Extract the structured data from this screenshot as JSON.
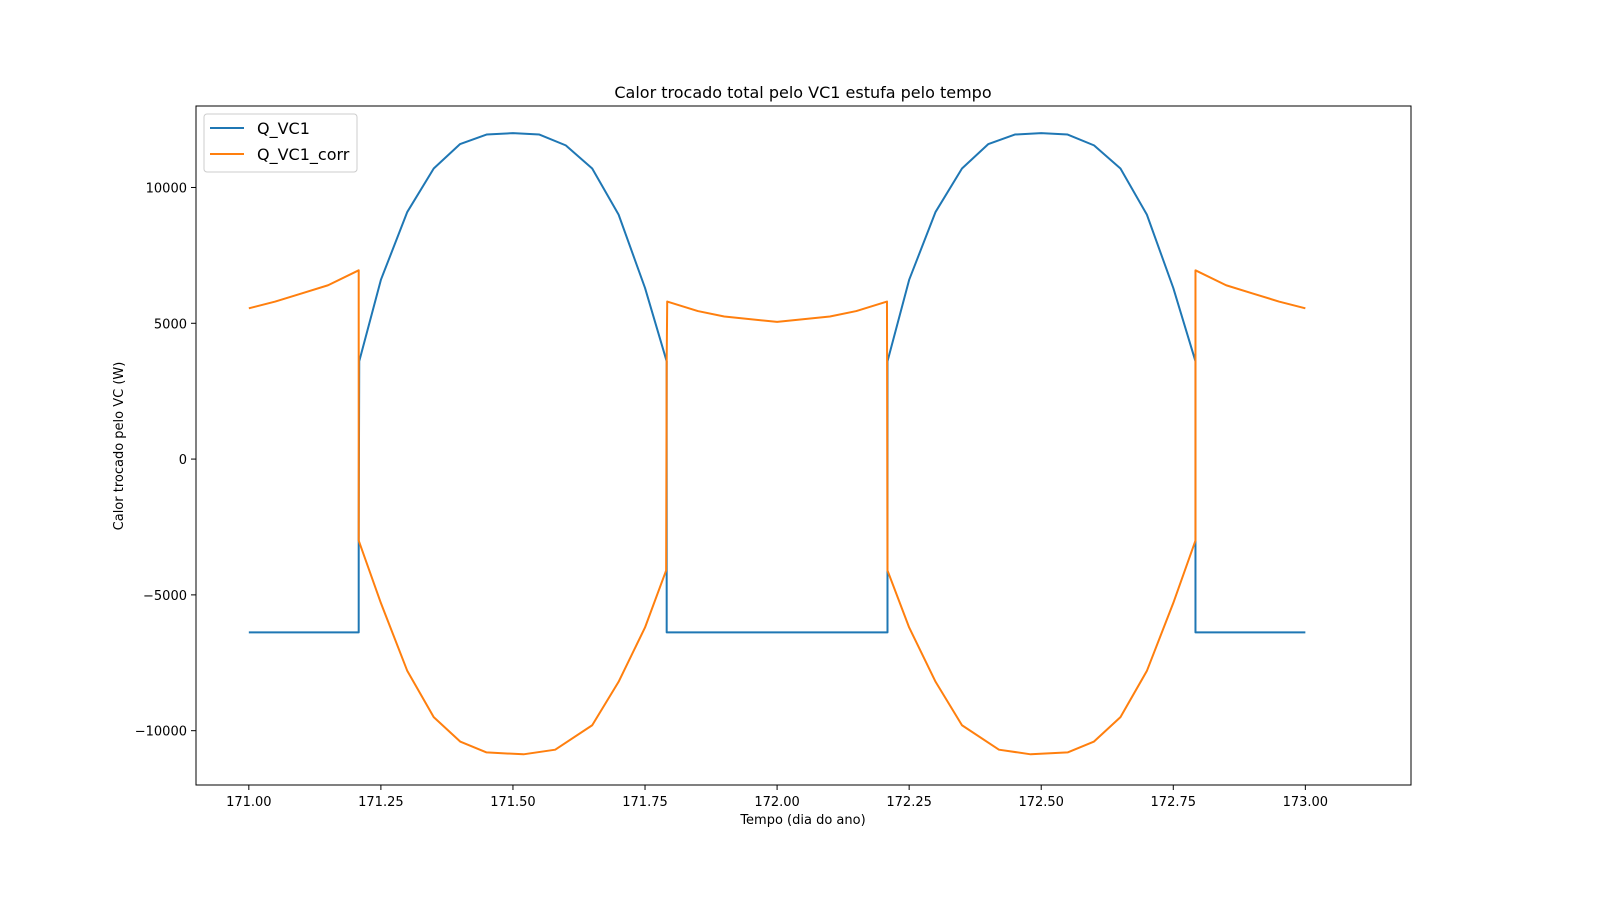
{
  "chart_data": {
    "type": "line",
    "title": "Calor trocado total pelo VC1 estufa pelo tempo",
    "xlabel": "Tempo (dia do ano)",
    "ylabel": "Calor trocado pelo VC (W)",
    "xlim": [
      170.9,
      173.2
    ],
    "ylim": [
      -12000,
      13000
    ],
    "xticks": [
      171.0,
      171.25,
      171.5,
      171.75,
      172.0,
      172.25,
      172.5,
      172.75,
      173.0
    ],
    "xtick_labels": [
      "171.00",
      "171.25",
      "171.50",
      "171.75",
      "172.00",
      "172.25",
      "172.50",
      "172.75",
      "173.00"
    ],
    "yticks": [
      -10000,
      -5000,
      0,
      5000,
      10000
    ],
    "ytick_labels": [
      "−10000",
      "−5000",
      "0",
      "5000",
      "10000"
    ],
    "grid": false,
    "legend_position": "upper-left",
    "series": [
      {
        "name": "Q_VC1",
        "color": "#1f77b4",
        "points": [
          [
            171.0,
            -6380
          ],
          [
            171.208,
            -6380
          ],
          [
            171.208,
            -3000
          ],
          [
            171.209,
            3600
          ],
          [
            171.25,
            6600
          ],
          [
            171.3,
            9100
          ],
          [
            171.35,
            10700
          ],
          [
            171.4,
            11600
          ],
          [
            171.45,
            11950
          ],
          [
            171.5,
            12000
          ],
          [
            171.55,
            11950
          ],
          [
            171.6,
            11550
          ],
          [
            171.65,
            10700
          ],
          [
            171.7,
            9000
          ],
          [
            171.75,
            6300
          ],
          [
            171.791,
            3600
          ],
          [
            171.791,
            -6380
          ],
          [
            172.209,
            -6380
          ],
          [
            172.209,
            3600
          ],
          [
            172.25,
            6600
          ],
          [
            172.3,
            9100
          ],
          [
            172.35,
            10700
          ],
          [
            172.4,
            11600
          ],
          [
            172.45,
            11950
          ],
          [
            172.5,
            12000
          ],
          [
            172.55,
            11950
          ],
          [
            172.6,
            11550
          ],
          [
            172.65,
            10700
          ],
          [
            172.7,
            9000
          ],
          [
            172.75,
            6300
          ],
          [
            172.792,
            3600
          ],
          [
            172.792,
            -6380
          ],
          [
            173.0,
            -6380
          ]
        ]
      },
      {
        "name": "Q_VC1_corr",
        "color": "#ff7f0e",
        "points": [
          [
            171.0,
            5550
          ],
          [
            171.05,
            5800
          ],
          [
            171.1,
            6100
          ],
          [
            171.15,
            6400
          ],
          [
            171.208,
            6950
          ],
          [
            171.208,
            -3000
          ],
          [
            171.25,
            -5300
          ],
          [
            171.3,
            -7800
          ],
          [
            171.35,
            -9500
          ],
          [
            171.4,
            -10400
          ],
          [
            171.45,
            -10800
          ],
          [
            171.52,
            -10870
          ],
          [
            171.58,
            -10700
          ],
          [
            171.65,
            -9800
          ],
          [
            171.7,
            -8200
          ],
          [
            171.75,
            -6200
          ],
          [
            171.79,
            -4100
          ],
          [
            171.791,
            3600
          ],
          [
            171.792,
            5800
          ],
          [
            171.85,
            5450
          ],
          [
            171.9,
            5250
          ],
          [
            172.0,
            5050
          ],
          [
            172.1,
            5250
          ],
          [
            172.15,
            5450
          ],
          [
            172.208,
            5800
          ],
          [
            172.209,
            -4100
          ],
          [
            172.25,
            -6200
          ],
          [
            172.3,
            -8200
          ],
          [
            172.35,
            -9800
          ],
          [
            172.42,
            -10700
          ],
          [
            172.48,
            -10870
          ],
          [
            172.55,
            -10800
          ],
          [
            172.6,
            -10400
          ],
          [
            172.65,
            -9500
          ],
          [
            172.7,
            -7800
          ],
          [
            172.75,
            -5300
          ],
          [
            172.792,
            -3000
          ],
          [
            172.792,
            6950
          ],
          [
            172.85,
            6400
          ],
          [
            172.9,
            6100
          ],
          [
            172.95,
            5800
          ],
          [
            173.0,
            5550
          ]
        ]
      }
    ]
  }
}
